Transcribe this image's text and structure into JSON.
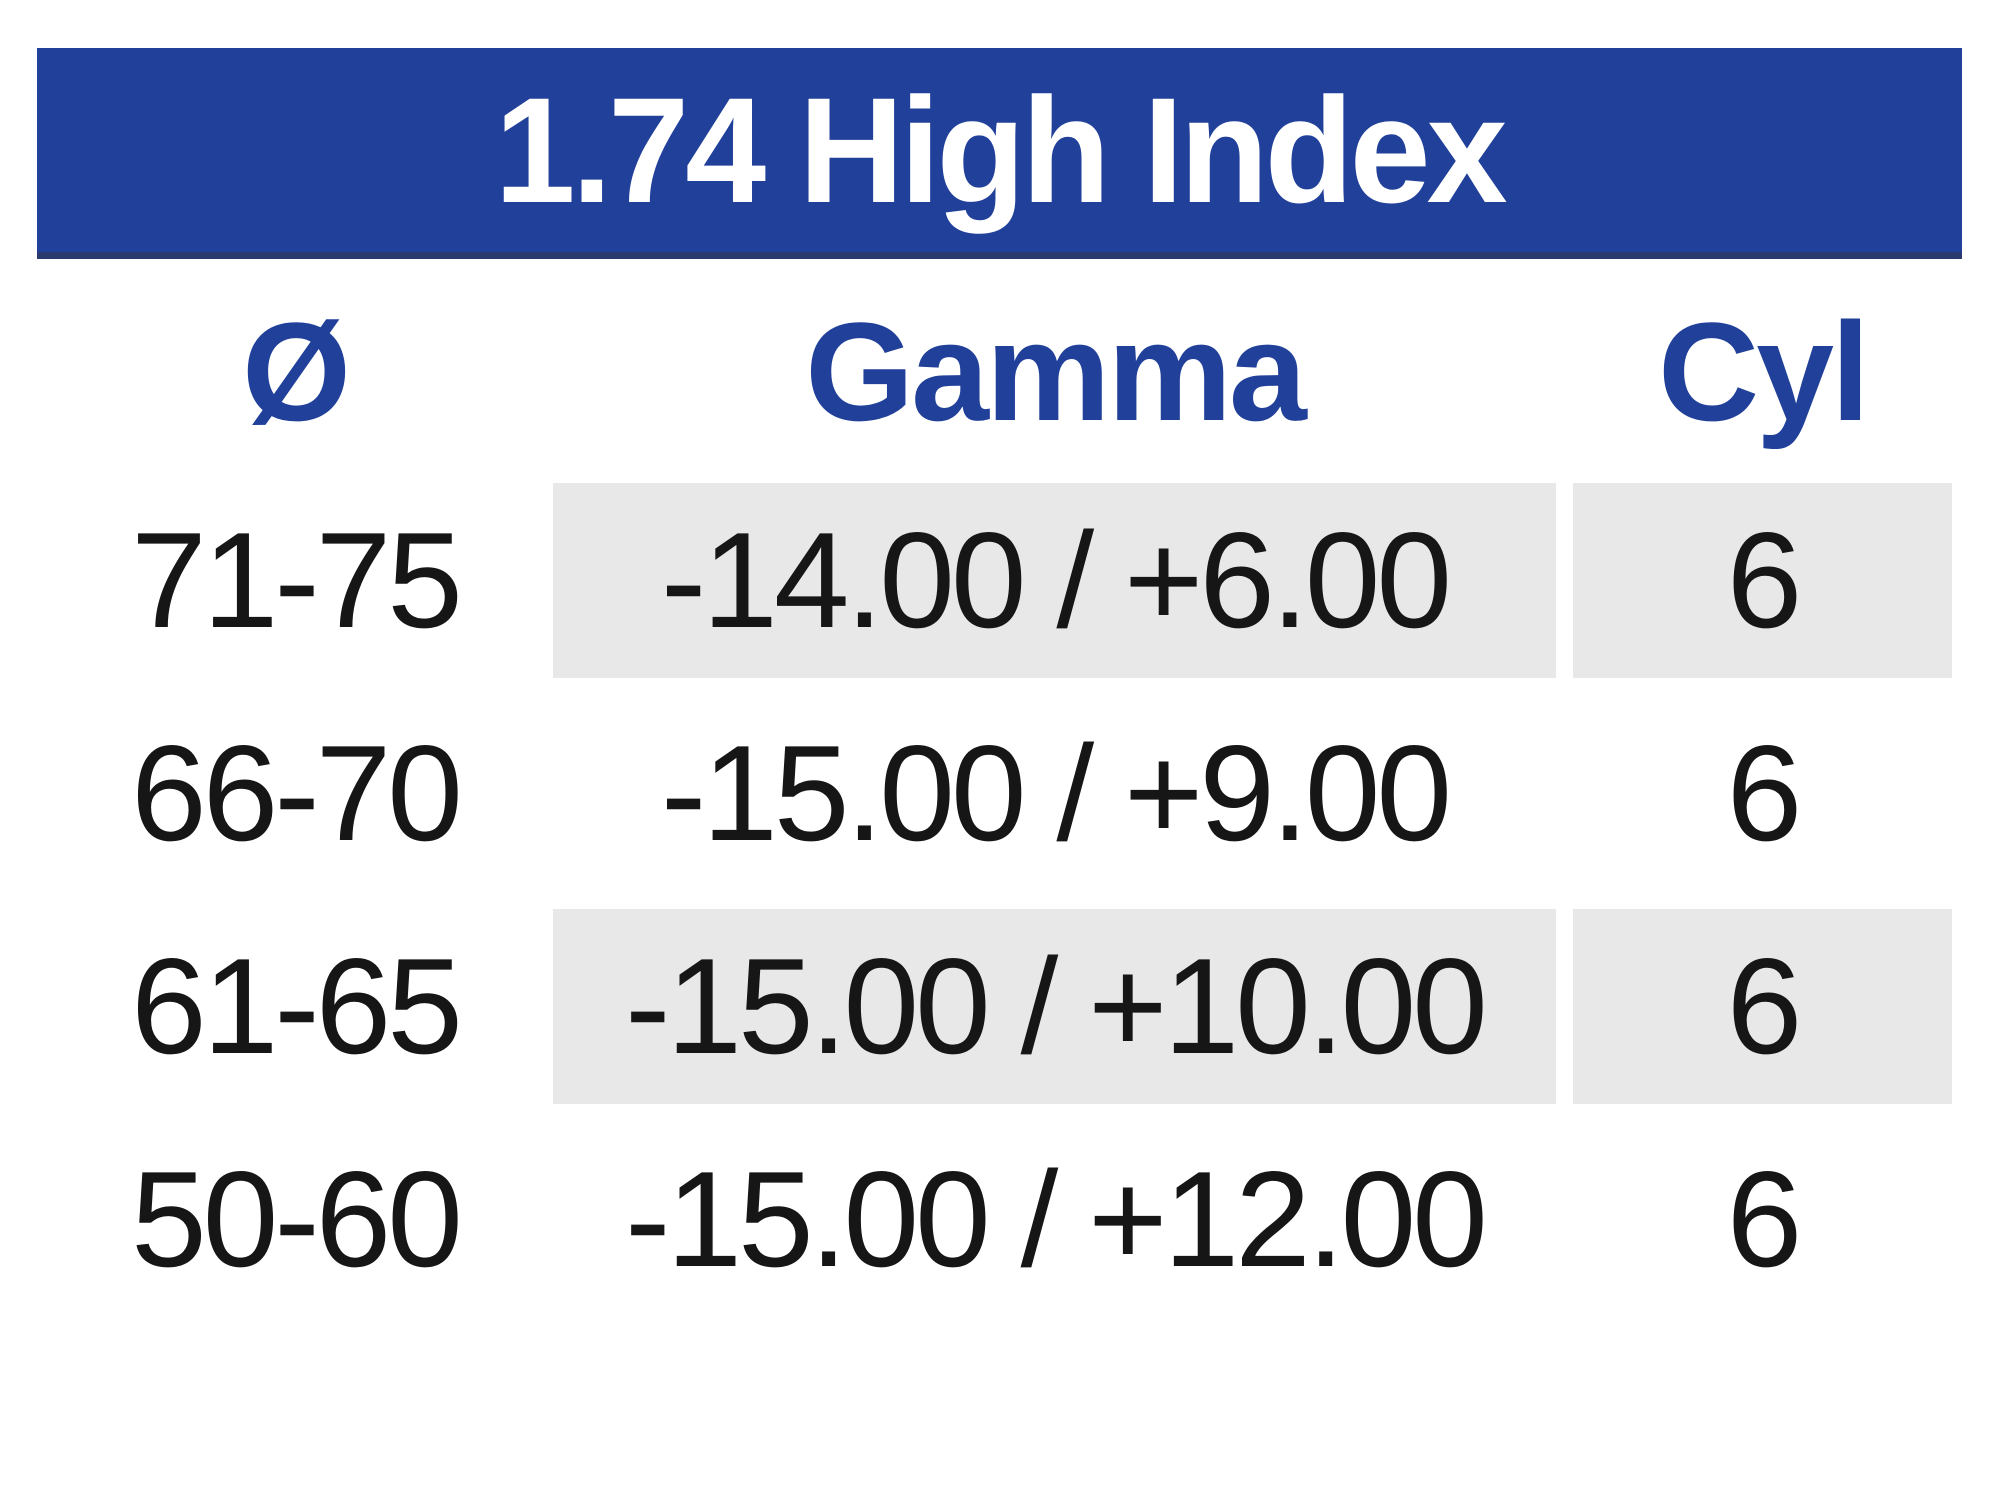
{
  "table": {
    "title": "1.74 High Index",
    "columns": [
      {
        "label": "Ø"
      },
      {
        "label": "Gamma"
      },
      {
        "label": "Cyl"
      }
    ],
    "rows": [
      {
        "diameter": "71-75",
        "gamma": "-14.00 / +6.00",
        "cyl": "6",
        "shaded": true
      },
      {
        "diameter": "66-70",
        "gamma": "-15.00 / +9.00",
        "cyl": "6",
        "shaded": false
      },
      {
        "diameter": "61-65",
        "gamma": "-15.00 / +10.00",
        "cyl": "6",
        "shaded": true
      },
      {
        "diameter": "50-60",
        "gamma": "-15.00 / +12.00",
        "cyl": "6",
        "shaded": false
      }
    ],
    "colors": {
      "title_bar_bg": "#21409A",
      "title_bar_border_bottom": "#2B3A6E",
      "title_text": "#FFFFFF",
      "column_header_text": "#21409A",
      "shaded_cell_bg": "#E8E8E8",
      "row_text": "#161616",
      "page_bg": "#FFFFFF"
    }
  },
  "chart_data": {
    "type": "table",
    "title": "1.74 High Index",
    "columns": [
      "Ø",
      "Gamma",
      "Cyl"
    ],
    "rows": [
      [
        "71-75",
        "-14.00 / +6.00",
        "6"
      ],
      [
        "66-70",
        "-15.00 / +9.00",
        "6"
      ],
      [
        "61-65",
        "-15.00 / +10.00",
        "6"
      ],
      [
        "50-60",
        "-15.00 / +12.00",
        "6"
      ]
    ]
  }
}
